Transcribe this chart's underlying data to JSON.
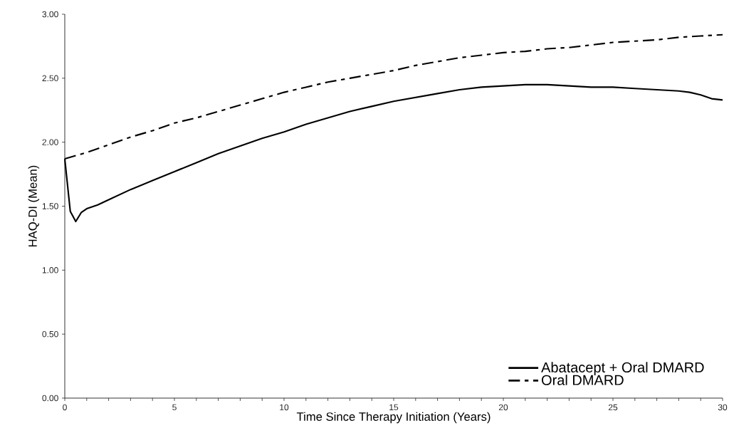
{
  "chart_data": {
    "type": "line",
    "xlabel": "Time Since Therapy Initiation (Years)",
    "ylabel": "HAQ-DI (Mean)",
    "xlim": [
      0,
      30
    ],
    "xticks": [
      0,
      5,
      10,
      15,
      20,
      25,
      30
    ],
    "ylim": [
      0,
      3
    ],
    "yticks": [
      {
        "value": 0,
        "label": "0.00"
      },
      {
        "value": 0.5,
        "label": "0.50"
      },
      {
        "value": 1,
        "label": "1.00"
      },
      {
        "value": 1.5,
        "label": "1.50"
      },
      {
        "value": 2,
        "label": "2.00"
      },
      {
        "value": 2.5,
        "label": "2.50"
      },
      {
        "value": 3,
        "label": "3.00"
      }
    ],
    "grid": false,
    "legend": "bottom right",
    "marker": "none",
    "series": [
      {
        "name": "Abatacept + Oral DMARD",
        "color": "#000000",
        "line_style": "solid",
        "x": [
          0,
          0.25,
          0.5,
          0.75,
          1,
          1.5,
          2,
          3,
          4,
          5,
          6,
          7,
          8,
          9,
          10,
          11,
          12,
          13,
          14,
          15,
          16,
          17,
          18,
          19,
          20,
          21,
          22,
          23,
          24,
          25,
          26,
          27,
          28,
          28.5,
          29,
          29.5,
          30
        ],
        "values": [
          1.87,
          1.46,
          1.38,
          1.45,
          1.48,
          1.51,
          1.55,
          1.63,
          1.7,
          1.77,
          1.84,
          1.91,
          1.97,
          2.03,
          2.08,
          2.14,
          2.19,
          2.24,
          2.28,
          2.32,
          2.35,
          2.38,
          2.41,
          2.43,
          2.44,
          2.45,
          2.45,
          2.44,
          2.43,
          2.43,
          2.42,
          2.41,
          2.4,
          2.39,
          2.37,
          2.34,
          2.33
        ]
      },
      {
        "name": "Oral DMARD",
        "color": "#000000",
        "line_style": "dashed",
        "x": [
          0,
          1,
          2,
          3,
          4,
          5,
          6,
          7,
          8,
          9,
          10,
          11,
          12,
          13,
          14,
          15,
          16,
          17,
          18,
          19,
          20,
          21,
          22,
          23,
          24,
          25,
          26,
          27,
          28,
          29,
          30
        ],
        "values": [
          1.87,
          1.92,
          1.98,
          2.04,
          2.09,
          2.15,
          2.19,
          2.24,
          2.29,
          2.34,
          2.39,
          2.43,
          2.47,
          2.5,
          2.53,
          2.56,
          2.6,
          2.63,
          2.66,
          2.68,
          2.7,
          2.71,
          2.73,
          2.74,
          2.76,
          2.78,
          2.79,
          2.8,
          2.82,
          2.83,
          2.84
        ]
      }
    ]
  }
}
